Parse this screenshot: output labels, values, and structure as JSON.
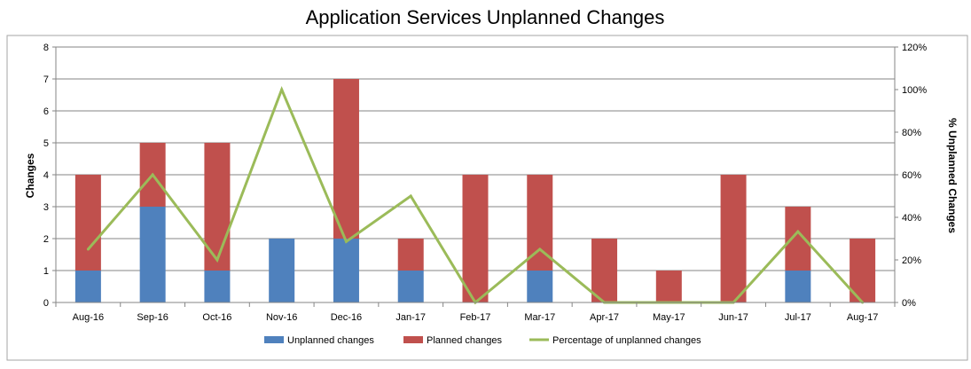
{
  "chart_data": {
    "type": "bar",
    "stacked": true,
    "title": "Application Services Unplanned Changes",
    "ylabel": "Changes",
    "y2label": "% Unplanned Changes",
    "ylim": [
      0,
      8
    ],
    "y2lim": [
      0,
      120
    ],
    "yticks": [
      "0",
      "1",
      "2",
      "3",
      "4",
      "5",
      "6",
      "7",
      "8"
    ],
    "y2ticks": [
      "0%",
      "20%",
      "40%",
      "60%",
      "80%",
      "100%",
      "120%"
    ],
    "categories": [
      "Aug-16",
      "Sep-16",
      "Oct-16",
      "Nov-16",
      "Dec-16",
      "Jan-17",
      "Feb-17",
      "Mar-17",
      "Apr-17",
      "May-17",
      "Jun-17",
      "Jul-17",
      "Aug-17"
    ],
    "series": [
      {
        "name": "Unplanned changes",
        "kind": "bar",
        "color": "#4f81bd",
        "values": [
          1,
          3,
          1,
          2,
          2,
          1,
          0,
          1,
          0,
          0,
          0,
          1,
          0
        ]
      },
      {
        "name": "Planned changes",
        "kind": "bar",
        "color": "#c0504d",
        "values": [
          3,
          2,
          4,
          0,
          5,
          1,
          4,
          3,
          2,
          1,
          4,
          2,
          2
        ]
      },
      {
        "name": "Percentage of unplanned changes",
        "kind": "line",
        "axis": "right",
        "color": "#9bbb59",
        "values": [
          25,
          60,
          20,
          100,
          28.6,
          50,
          0,
          25,
          0,
          0,
          0,
          33.3,
          0
        ]
      }
    ],
    "grid": true,
    "legend_position": "bottom"
  }
}
